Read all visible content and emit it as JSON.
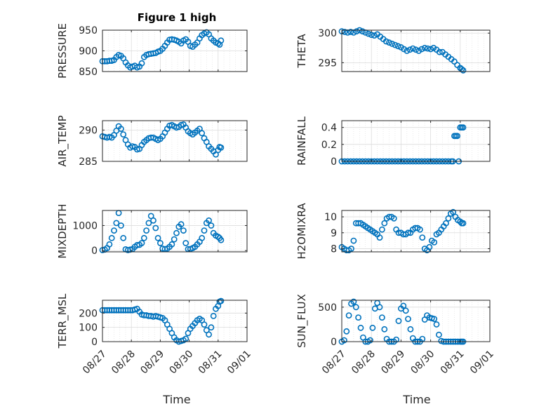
{
  "figure": {
    "title": "Figure 1 high",
    "xlabel": "Time",
    "x_ticks": [
      "08/27",
      "08/28",
      "08/29",
      "08/30",
      "08/31",
      "09/01"
    ],
    "marker_color": "#0072BD",
    "axis_color": "#262626",
    "grid_color": "#dcdcdc"
  },
  "chart_data": [
    {
      "type": "scatter",
      "ylabel": "PRESSURE",
      "xlim": [
        0,
        5
      ],
      "ylim": [
        850,
        950
      ],
      "yticks": [
        850,
        900,
        950
      ],
      "grid": true,
      "x": [
        0.0,
        0.08,
        0.16,
        0.24,
        0.32,
        0.4,
        0.48,
        0.56,
        0.64,
        0.72,
        0.8,
        0.88,
        0.96,
        1.04,
        1.12,
        1.2,
        1.28,
        1.36,
        1.44,
        1.52,
        1.6,
        1.68,
        1.76,
        1.84,
        1.92,
        2.0,
        2.08,
        2.16,
        2.24,
        2.32,
        2.4,
        2.48,
        2.56,
        2.64,
        2.72,
        2.8,
        2.88,
        2.96,
        3.04,
        3.12,
        3.2,
        3.28,
        3.36,
        3.44,
        3.52,
        3.6,
        3.68,
        3.76,
        3.84,
        3.92,
        4.0,
        4.05,
        4.1
      ],
      "y": [
        875,
        875,
        875,
        876,
        876,
        878,
        885,
        890,
        888,
        882,
        872,
        865,
        860,
        862,
        864,
        860,
        862,
        870,
        885,
        890,
        892,
        893,
        894,
        895,
        898,
        900,
        905,
        912,
        920,
        927,
        928,
        927,
        925,
        922,
        918,
        925,
        928,
        922,
        912,
        910,
        915,
        920,
        930,
        938,
        942,
        945,
        940,
        930,
        925,
        920,
        918,
        915,
        925
      ]
    },
    {
      "type": "scatter",
      "ylabel": "THETA",
      "xlim": [
        0,
        5
      ],
      "ylim": [
        293.5,
        300.5
      ],
      "yticks": [
        295,
        300
      ],
      "grid": true,
      "x": [
        0.0,
        0.1,
        0.2,
        0.3,
        0.4,
        0.5,
        0.6,
        0.7,
        0.8,
        0.9,
        1.0,
        1.1,
        1.2,
        1.3,
        1.4,
        1.5,
        1.6,
        1.7,
        1.8,
        1.9,
        2.0,
        2.1,
        2.2,
        2.3,
        2.4,
        2.5,
        2.6,
        2.7,
        2.8,
        2.9,
        3.0,
        3.1,
        3.2,
        3.3,
        3.4,
        3.5,
        3.6,
        3.7,
        3.8,
        3.9,
        4.0,
        4.05,
        4.1
      ],
      "y": [
        300.3,
        300.2,
        300.1,
        300.2,
        300.1,
        300.3,
        300.5,
        300.3,
        300.1,
        299.9,
        299.7,
        299.6,
        299.8,
        299.4,
        299.0,
        298.6,
        298.4,
        298.2,
        298.0,
        297.8,
        297.6,
        297.3,
        297.0,
        297.2,
        297.4,
        297.2,
        297.0,
        297.3,
        297.5,
        297.4,
        297.3,
        297.5,
        297.2,
        296.8,
        296.8,
        296.4,
        296.0,
        295.6,
        295.2,
        294.6,
        294.1,
        293.9,
        293.7
      ]
    },
    {
      "type": "scatter",
      "ylabel": "AIR_TEMP",
      "xlim": [
        0,
        5
      ],
      "ylim": [
        285,
        291.5
      ],
      "yticks": [
        285,
        290
      ],
      "grid": true,
      "x": [
        0.0,
        0.08,
        0.16,
        0.24,
        0.32,
        0.4,
        0.48,
        0.56,
        0.64,
        0.72,
        0.8,
        0.88,
        0.96,
        1.04,
        1.12,
        1.2,
        1.28,
        1.36,
        1.44,
        1.52,
        1.6,
        1.68,
        1.76,
        1.84,
        1.92,
        2.0,
        2.08,
        2.16,
        2.24,
        2.32,
        2.4,
        2.48,
        2.56,
        2.64,
        2.72,
        2.8,
        2.88,
        2.96,
        3.04,
        3.12,
        3.2,
        3.28,
        3.36,
        3.44,
        3.52,
        3.6,
        3.68,
        3.76,
        3.84,
        3.92,
        4.0,
        4.05,
        4.1
      ],
      "y": [
        289.0,
        288.9,
        288.8,
        288.9,
        288.8,
        289.2,
        289.9,
        290.6,
        290.2,
        289.3,
        288.4,
        287.7,
        287.2,
        287.4,
        287.3,
        286.9,
        287.0,
        287.6,
        288.1,
        288.4,
        288.7,
        288.8,
        288.8,
        288.6,
        288.4,
        288.6,
        289.0,
        289.6,
        290.2,
        290.7,
        290.8,
        290.6,
        290.4,
        290.5,
        290.8,
        290.9,
        290.4,
        289.8,
        289.5,
        289.3,
        289.6,
        289.9,
        290.2,
        289.5,
        288.7,
        288.1,
        287.4,
        287.0,
        286.6,
        286.1,
        286.8,
        287.3,
        287.2
      ]
    },
    {
      "type": "scatter",
      "ylabel": "RAINFALL",
      "xlim": [
        0,
        5
      ],
      "ylim": [
        0,
        0.48
      ],
      "yticks": [
        0,
        0.2,
        0.4
      ],
      "grid": true,
      "x": [
        0.0,
        0.1,
        0.2,
        0.3,
        0.4,
        0.5,
        0.6,
        0.7,
        0.8,
        0.9,
        1.0,
        1.1,
        1.2,
        1.3,
        1.4,
        1.5,
        1.6,
        1.7,
        1.8,
        1.9,
        2.0,
        2.1,
        2.2,
        2.3,
        2.4,
        2.5,
        2.6,
        2.7,
        2.8,
        2.9,
        3.0,
        3.1,
        3.2,
        3.3,
        3.4,
        3.5,
        3.6,
        3.7,
        3.75,
        3.8,
        3.85,
        3.9,
        3.95,
        4.0,
        4.05,
        4.1
      ],
      "y": [
        0,
        0,
        0,
        0,
        0,
        0,
        0,
        0,
        0,
        0,
        0,
        0,
        0,
        0,
        0,
        0,
        0,
        0,
        0,
        0,
        0,
        0,
        0,
        0,
        0,
        0,
        0,
        0,
        0,
        0,
        0,
        0,
        0,
        0,
        0,
        0,
        0,
        0,
        0,
        0.3,
        0.3,
        0.3,
        0,
        0.4,
        0.4,
        0.4
      ]
    },
    {
      "type": "scatter",
      "ylabel": "MIXDEPTH",
      "xlim": [
        0,
        5
      ],
      "ylim": [
        -50,
        1600
      ],
      "yticks": [
        0,
        1000
      ],
      "grid": true,
      "x": [
        0.0,
        0.08,
        0.16,
        0.24,
        0.32,
        0.4,
        0.48,
        0.56,
        0.64,
        0.72,
        0.8,
        0.88,
        0.96,
        1.04,
        1.12,
        1.2,
        1.28,
        1.36,
        1.44,
        1.52,
        1.6,
        1.68,
        1.76,
        1.84,
        1.92,
        2.0,
        2.08,
        2.16,
        2.24,
        2.32,
        2.4,
        2.48,
        2.56,
        2.64,
        2.72,
        2.8,
        2.88,
        2.96,
        3.04,
        3.12,
        3.2,
        3.28,
        3.36,
        3.44,
        3.52,
        3.6,
        3.68,
        3.76,
        3.84,
        3.92,
        4.0,
        4.05,
        4.1
      ],
      "y": [
        20,
        40,
        100,
        250,
        500,
        800,
        1100,
        1500,
        1000,
        500,
        50,
        20,
        40,
        60,
        150,
        220,
        230,
        300,
        500,
        800,
        1100,
        1380,
        1200,
        900,
        500,
        300,
        80,
        60,
        80,
        150,
        250,
        450,
        700,
        950,
        1050,
        800,
        300,
        60,
        60,
        100,
        150,
        250,
        350,
        500,
        800,
        1100,
        1200,
        1000,
        700,
        600,
        550,
        500,
        420
      ]
    },
    {
      "type": "scatter",
      "ylabel": "H2OMIXRA",
      "xlim": [
        0,
        5
      ],
      "ylim": [
        7.8,
        10.4
      ],
      "yticks": [
        8,
        9,
        10
      ],
      "grid": true,
      "x": [
        0.0,
        0.08,
        0.16,
        0.24,
        0.32,
        0.4,
        0.48,
        0.56,
        0.64,
        0.72,
        0.8,
        0.88,
        0.96,
        1.04,
        1.12,
        1.2,
        1.28,
        1.36,
        1.44,
        1.52,
        1.6,
        1.68,
        1.76,
        1.84,
        1.92,
        2.0,
        2.08,
        2.16,
        2.24,
        2.32,
        2.4,
        2.48,
        2.56,
        2.64,
        2.72,
        2.8,
        2.88,
        2.96,
        3.04,
        3.12,
        3.2,
        3.28,
        3.36,
        3.44,
        3.52,
        3.6,
        3.68,
        3.76,
        3.84,
        3.92,
        4.0,
        4.05,
        4.1
      ],
      "y": [
        8.1,
        8.0,
        7.9,
        7.9,
        8.0,
        8.5,
        9.6,
        9.6,
        9.6,
        9.5,
        9.4,
        9.3,
        9.2,
        9.1,
        9.0,
        8.9,
        8.7,
        9.2,
        9.6,
        9.9,
        10.0,
        10.0,
        9.9,
        9.2,
        9.0,
        9.0,
        8.9,
        8.9,
        9.0,
        9.0,
        9.2,
        9.3,
        9.3,
        9.2,
        8.7,
        8.0,
        7.9,
        8.1,
        8.5,
        8.4,
        8.9,
        9.0,
        9.2,
        9.4,
        9.6,
        9.9,
        10.2,
        10.3,
        10.0,
        9.8,
        9.7,
        9.6,
        9.6
      ]
    },
    {
      "type": "scatter",
      "ylabel": "TERR_MSL",
      "xlim": [
        0,
        5
      ],
      "ylim": [
        0,
        290
      ],
      "yticks": [
        0,
        100,
        200
      ],
      "grid": true,
      "x": [
        0.0,
        0.08,
        0.16,
        0.24,
        0.32,
        0.4,
        0.48,
        0.56,
        0.64,
        0.72,
        0.8,
        0.88,
        0.96,
        1.04,
        1.12,
        1.2,
        1.28,
        1.36,
        1.44,
        1.52,
        1.6,
        1.68,
        1.76,
        1.84,
        1.92,
        2.0,
        2.08,
        2.16,
        2.24,
        2.32,
        2.4,
        2.48,
        2.56,
        2.64,
        2.72,
        2.8,
        2.88,
        2.96,
        3.04,
        3.12,
        3.2,
        3.28,
        3.36,
        3.44,
        3.52,
        3.6,
        3.68,
        3.76,
        3.84,
        3.92,
        4.0,
        4.05,
        4.1
      ],
      "y": [
        220,
        220,
        220,
        220,
        220,
        220,
        220,
        220,
        220,
        220,
        220,
        220,
        220,
        220,
        225,
        230,
        210,
        190,
        185,
        185,
        180,
        180,
        175,
        180,
        175,
        170,
        165,
        150,
        120,
        90,
        60,
        30,
        10,
        0,
        5,
        10,
        20,
        60,
        90,
        110,
        130,
        150,
        160,
        150,
        120,
        80,
        50,
        100,
        180,
        230,
        250,
        280,
        285
      ]
    },
    {
      "type": "scatter",
      "ylabel": "SUN_FLUX",
      "xlim": [
        0,
        5
      ],
      "ylim": [
        0,
        600
      ],
      "yticks": [
        0,
        500
      ],
      "grid": true,
      "x": [
        0.0,
        0.08,
        0.16,
        0.24,
        0.32,
        0.4,
        0.48,
        0.56,
        0.64,
        0.72,
        0.8,
        0.88,
        0.96,
        1.04,
        1.12,
        1.2,
        1.28,
        1.36,
        1.44,
        1.52,
        1.6,
        1.68,
        1.76,
        1.84,
        1.92,
        2.0,
        2.08,
        2.16,
        2.24,
        2.32,
        2.4,
        2.48,
        2.56,
        2.64,
        2.72,
        2.8,
        2.88,
        2.96,
        3.04,
        3.12,
        3.2,
        3.28,
        3.36,
        3.44,
        3.52,
        3.6,
        3.68,
        3.76,
        3.84,
        3.92,
        4.0,
        4.05,
        4.1
      ],
      "y": [
        0,
        20,
        150,
        380,
        550,
        580,
        500,
        350,
        200,
        60,
        0,
        0,
        20,
        200,
        480,
        560,
        500,
        350,
        180,
        40,
        0,
        0,
        0,
        30,
        300,
        480,
        520,
        450,
        330,
        180,
        50,
        0,
        0,
        0,
        40,
        320,
        380,
        350,
        340,
        330,
        250,
        100,
        10,
        0,
        0,
        0,
        0,
        0,
        0,
        0,
        0,
        0,
        0
      ]
    }
  ]
}
